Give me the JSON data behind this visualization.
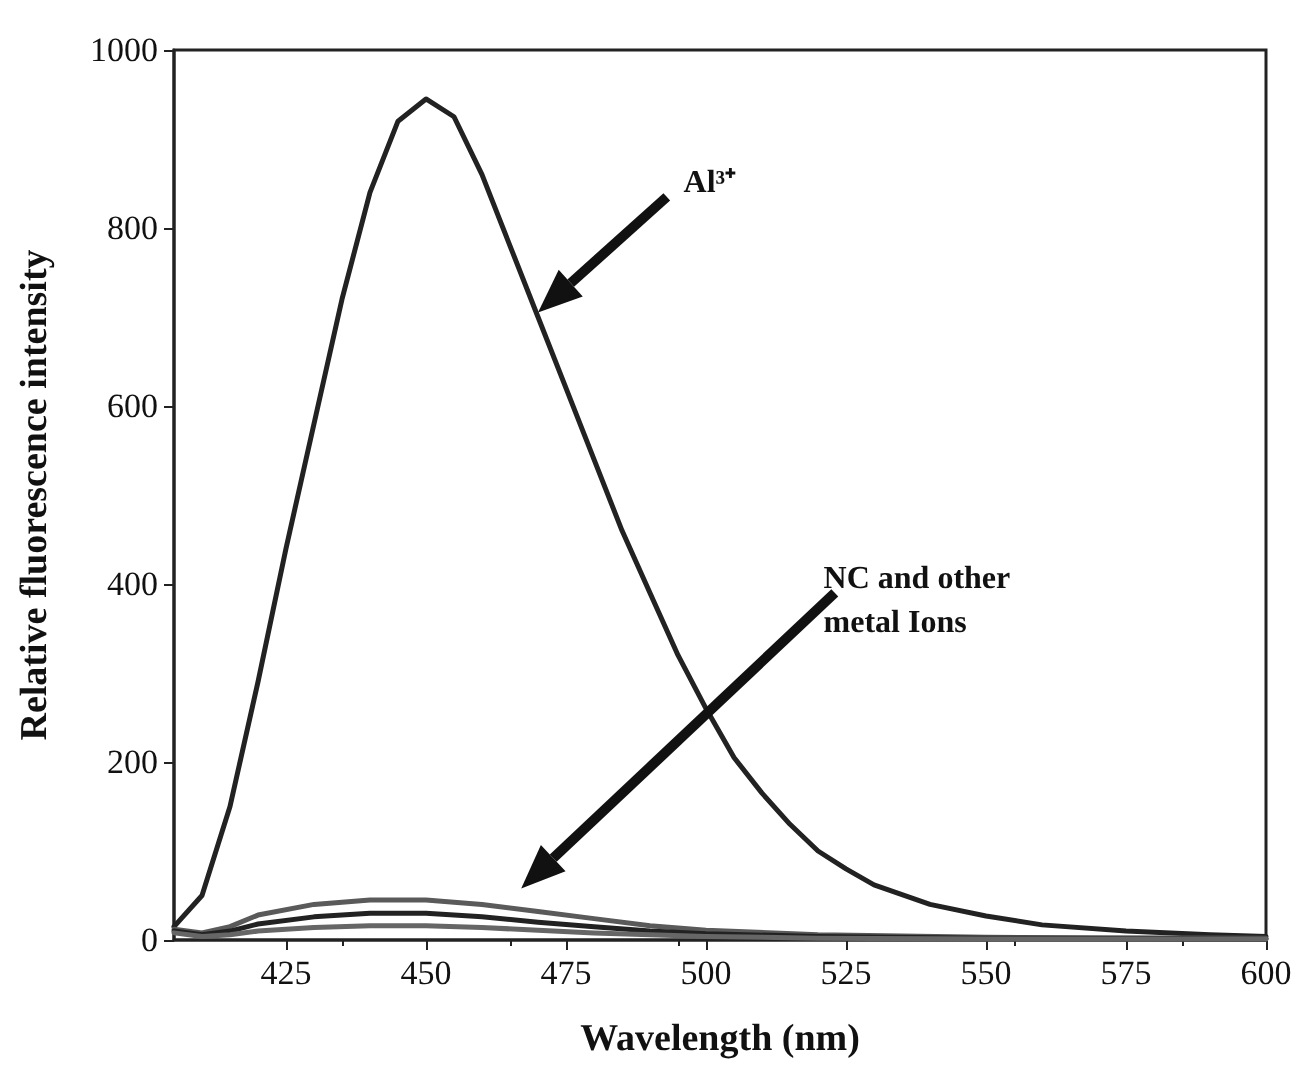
{
  "chart_data": {
    "type": "line",
    "xlabel": "Wavelength (nm)",
    "ylabel": "Relative fluorescence intensity",
    "xlim": [
      405,
      600
    ],
    "xticks": [
      425,
      450,
      475,
      500,
      525,
      550,
      575,
      600
    ],
    "ylim": [
      0,
      1000
    ],
    "yticks": [
      0,
      200,
      400,
      600,
      800,
      1000
    ],
    "grid": false,
    "marker": "none",
    "line_style": "solid",
    "annotations": [
      "Al³⁺",
      "NC and other metal Ions"
    ],
    "series": [
      {
        "color": "#222222",
        "x": [
          405,
          410,
          415,
          420,
          425,
          430,
          435,
          440,
          445,
          450,
          455,
          460,
          465,
          470,
          475,
          480,
          485,
          490,
          495,
          500,
          505,
          510,
          515,
          520,
          525,
          530,
          540,
          550,
          560,
          575,
          590,
          600
        ],
        "values": [
          15,
          50,
          150,
          290,
          440,
          580,
          720,
          840,
          920,
          945,
          925,
          860,
          780,
          700,
          620,
          540,
          460,
          390,
          320,
          260,
          205,
          165,
          130,
          100,
          80,
          62,
          40,
          27,
          17,
          10,
          6,
          4
        ]
      },
      {
        "color": "#5a5a5a",
        "x": [
          405,
          410,
          415,
          420,
          430,
          440,
          450,
          460,
          470,
          480,
          490,
          500,
          520,
          550,
          600
        ],
        "values": [
          12,
          8,
          15,
          28,
          40,
          45,
          45,
          40,
          32,
          24,
          16,
          11,
          6,
          3,
          2
        ]
      },
      {
        "color": "#222222",
        "x": [
          405,
          410,
          415,
          420,
          430,
          440,
          450,
          460,
          470,
          480,
          490,
          500,
          520,
          550,
          600
        ],
        "values": [
          10,
          6,
          10,
          18,
          26,
          30,
          30,
          26,
          20,
          15,
          10,
          7,
          4,
          2,
          1
        ]
      },
      {
        "color": "#666666",
        "x": [
          405,
          410,
          415,
          420,
          430,
          440,
          450,
          460,
          470,
          480,
          490,
          500,
          520,
          550,
          600
        ],
        "values": [
          8,
          4,
          6,
          10,
          14,
          16,
          16,
          14,
          11,
          8,
          6,
          4,
          2,
          1,
          1
        ]
      }
    ]
  }
}
